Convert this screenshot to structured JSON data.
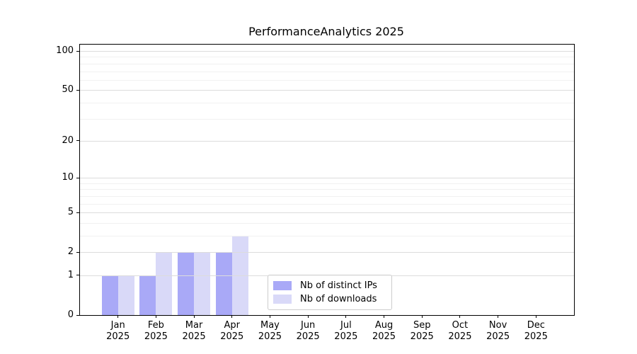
{
  "chart_data": {
    "type": "bar",
    "title": "PerformanceAnalytics 2025",
    "categories": [
      "Jan",
      "Feb",
      "Mar",
      "Apr",
      "May",
      "Jun",
      "Jul",
      "Aug",
      "Sep",
      "Oct",
      "Nov",
      "Dec"
    ],
    "category_year": "2025",
    "series": [
      {
        "name": "Nb of distinct IPs",
        "color": "#a9a9f7",
        "values": [
          1,
          1,
          2,
          2,
          0,
          0,
          0,
          0,
          0,
          0,
          0,
          0
        ]
      },
      {
        "name": "Nb of downloads",
        "color": "#d9d9f8",
        "values": [
          1,
          2,
          2,
          3,
          0,
          0,
          0,
          0,
          0,
          0,
          0,
          0
        ]
      }
    ],
    "yscale": "log1p",
    "ylim": [
      0,
      112
    ],
    "major_yticks": [
      0,
      1,
      2,
      5,
      10,
      20,
      50,
      100
    ],
    "minor_yticks": [
      3,
      4,
      6,
      7,
      8,
      9,
      30,
      40,
      60,
      70,
      80,
      90
    ],
    "grid": true,
    "legend_position": "lower center"
  },
  "colors": {
    "major_grid": "#dcdcdc",
    "minor_grid": "#f1f1f1",
    "spine": "#000000",
    "legend_border": "#cccccc"
  }
}
